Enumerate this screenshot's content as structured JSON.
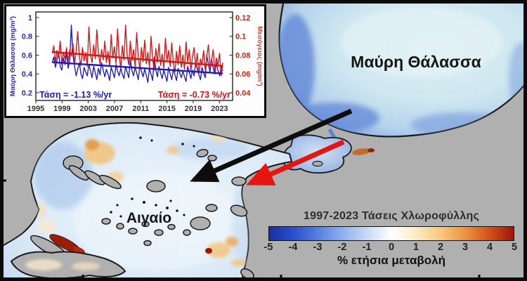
{
  "figure": {
    "black_sea_label": "Μαύρη Θάλασσα",
    "aegean_label": "Αιγαίο",
    "colors": {
      "land": "#b0b0b0",
      "coastline": "#1a1a1a",
      "sea_rim_blue": "#5b82d4",
      "sea_center_light": "#dbeff4",
      "black_arrow": "#0d0d0d",
      "red_arrow": "#e8150f"
    }
  },
  "colorbar": {
    "title": "1997-2023 Τάσεις Χλωροφύλλης",
    "unit_label": "% ετήσια μεταβολή",
    "ticks": [
      "-5",
      "-4",
      "-3",
      "-2",
      "-1",
      "0",
      "1",
      "2",
      "3",
      "4",
      "5"
    ],
    "gradient_colors": [
      "#16309f",
      "#2a4fd0",
      "#5580e2",
      "#8fb0ee",
      "#c6daf4",
      "#ffffff",
      "#fbecc3",
      "#f6c97e",
      "#ec9440",
      "#d4521a",
      "#9e1408"
    ]
  },
  "chart_data": {
    "type": "line",
    "title": "",
    "x_tick_years": [
      1995,
      1999,
      2003,
      2007,
      2011,
      2015,
      2019,
      2023
    ],
    "x_tick_labels": [
      "1995",
      "1999",
      "2003",
      "2007",
      "2011",
      "2015",
      "2019",
      "2023"
    ],
    "x_start": 1997.5,
    "x_step": 0.243,
    "left_axis": {
      "label": "Μαύρη Θάλασσα (mg/m³)",
      "ticks": [
        1,
        0.8,
        0.6,
        0.4,
        0.2
      ],
      "tick_labels": [
        "1",
        "0.8",
        "0.6",
        "0.4",
        "0.2"
      ],
      "color": "#2b2bbf",
      "range": [
        0.13,
        1.05
      ]
    },
    "right_axis": {
      "label": "Μεσόγειος (mg/m³)",
      "ticks": [
        0.12,
        0.1,
        0.08,
        0.06,
        0.04
      ],
      "tick_labels": [
        "0.12",
        "0.1",
        "0.08",
        "0.06",
        "0.04"
      ],
      "color": "#cc2211",
      "range": [
        0.033,
        0.125
      ]
    },
    "series": [
      {
        "name": "Μαύρη Θάλασσα (mg/m³)",
        "axis": "left",
        "color": "#1a1acc",
        "trend": {
          "start": 0.525,
          "end": 0.405,
          "label": "Τάση = -1.13 %/yr"
        },
        "values": [
          0.52,
          0.58,
          0.47,
          0.55,
          0.62,
          0.48,
          0.44,
          0.57,
          0.5,
          0.63,
          0.46,
          0.55,
          0.92,
          0.6,
          0.48,
          0.38,
          0.45,
          0.52,
          0.4,
          0.35,
          0.47,
          0.42,
          0.38,
          0.5,
          0.43,
          0.36,
          0.48,
          0.41,
          0.34,
          0.46,
          0.39,
          0.52,
          0.44,
          0.37,
          0.45,
          0.4,
          0.33,
          0.47,
          0.42,
          0.36,
          0.5,
          0.43,
          0.38,
          0.46,
          0.4,
          0.35,
          0.48,
          0.42,
          0.36,
          0.55,
          0.44,
          0.38,
          0.47,
          0.41,
          0.34,
          0.49,
          0.43,
          0.37,
          0.45,
          0.39,
          0.31,
          0.46,
          0.4,
          0.33,
          0.58,
          0.44,
          0.37,
          0.48,
          0.41,
          0.35,
          0.44,
          0.38,
          0.32,
          0.47,
          0.4,
          0.34,
          0.45,
          0.39,
          0.33,
          0.46,
          0.41,
          0.36,
          0.43,
          0.37,
          0.32,
          0.48,
          0.42,
          0.35,
          0.44,
          0.38,
          0.53,
          0.45,
          0.39,
          0.34,
          0.47,
          0.41,
          0.36,
          0.6,
          0.5,
          0.42,
          0.56,
          0.46,
          0.4,
          0.52,
          0.44,
          0.38,
          0.48,
          0.43
        ]
      },
      {
        "name": "Μεσόγειος (mg/m³)",
        "axis": "right",
        "color": "#dd1111",
        "trend": {
          "start": 0.0835,
          "end": 0.0685,
          "label": "Τάση = -0.73 %/yr"
        },
        "values": [
          0.082,
          0.09,
          0.072,
          0.085,
          0.078,
          0.095,
          0.07,
          0.083,
          0.076,
          0.088,
          0.073,
          0.086,
          0.079,
          0.092,
          0.071,
          0.084,
          0.105,
          0.078,
          0.069,
          0.088,
          0.074,
          0.083,
          0.068,
          0.11,
          0.08,
          0.072,
          0.091,
          0.076,
          0.107,
          0.082,
          0.07,
          0.086,
          0.075,
          0.095,
          0.072,
          0.084,
          0.068,
          0.102,
          0.077,
          0.089,
          0.071,
          0.108,
          0.079,
          0.066,
          0.09,
          0.075,
          0.112,
          0.08,
          0.07,
          0.095,
          0.074,
          0.086,
          0.068,
          0.104,
          0.078,
          0.065,
          0.088,
          0.073,
          0.096,
          0.071,
          0.083,
          0.067,
          0.1,
          0.076,
          0.064,
          0.087,
          0.072,
          0.092,
          0.069,
          0.081,
          0.066,
          0.098,
          0.074,
          0.085,
          0.068,
          0.093,
          0.071,
          0.062,
          0.084,
          0.07,
          0.09,
          0.067,
          0.08,
          0.065,
          0.094,
          0.072,
          0.086,
          0.063,
          0.078,
          0.088,
          0.068,
          0.082,
          0.06,
          0.076,
          0.07,
          0.085,
          0.064,
          0.079,
          0.091,
          0.067,
          0.074,
          0.086,
          0.062,
          0.077,
          0.07,
          0.082,
          0.058,
          0.072
        ]
      }
    ]
  }
}
